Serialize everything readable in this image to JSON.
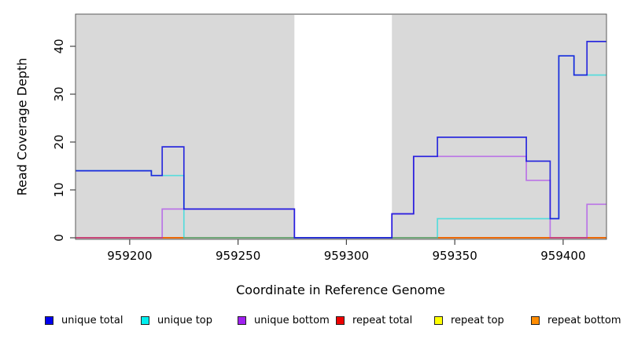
{
  "figure": {
    "kind": "read-coverage-step-plot",
    "background_color": "#ffffff",
    "plot_background_color": "#d9d9d9",
    "frame_color": "#5a5a5a"
  },
  "axes": {
    "xlabel": "Coordinate in Reference Genome",
    "ylabel": "Read Coverage Depth"
  },
  "chart_data": {
    "type": "line",
    "subtype": "step",
    "title": "",
    "xlabel": "Coordinate in Reference Genome",
    "ylabel": "Read Coverage Depth",
    "xlim": [
      959175,
      959420
    ],
    "ylim": [
      0,
      46
    ],
    "x_ticks": [
      959200,
      959250,
      959300,
      959350,
      959400
    ],
    "y_ticks": [
      0,
      10,
      20,
      30,
      40
    ],
    "grid": false,
    "legend_position": "bottom",
    "plot_fill": "#d9d9d9",
    "gap_region": {
      "start": 959276,
      "end": 959321,
      "fill": "#ffffff",
      "note": "white uncovered band"
    },
    "series": [
      {
        "name": "repeat bottom",
        "color": "#ff8c00",
        "opacity": 0.95,
        "points": [
          [
            959175,
            0
          ]
        ]
      },
      {
        "name": "repeat top",
        "color": "#ffff00",
        "opacity": 0.75,
        "points": [
          [
            959175,
            0
          ]
        ]
      },
      {
        "name": "repeat total",
        "color": "#dd0000",
        "opacity": 0.6,
        "points": [
          [
            959175,
            0
          ]
        ]
      },
      {
        "name": "unique bottom",
        "color": "#a020f0",
        "opacity": 0.55,
        "points": [
          [
            959175,
            0
          ],
          [
            959215,
            6
          ],
          [
            959276,
            0
          ],
          [
            959321,
            5
          ],
          [
            959331,
            17
          ],
          [
            959383,
            12
          ],
          [
            959394,
            0
          ],
          [
            959411,
            7
          ]
        ]
      },
      {
        "name": "unique top",
        "color": "#00dddd",
        "opacity": 0.6,
        "points": [
          [
            959175,
            14
          ],
          [
            959210,
            13
          ],
          [
            959225,
            0
          ],
          [
            959342,
            4
          ],
          [
            959398,
            38
          ],
          [
            959405,
            34
          ]
        ]
      },
      {
        "name": "unique total",
        "color": "#1212dd",
        "opacity": 0.88,
        "points": [
          [
            959175,
            14
          ],
          [
            959210,
            13
          ],
          [
            959215,
            19
          ],
          [
            959225,
            6
          ],
          [
            959276,
            0
          ],
          [
            959321,
            5
          ],
          [
            959331,
            17
          ],
          [
            959342,
            21
          ],
          [
            959383,
            16
          ],
          [
            959394,
            4
          ],
          [
            959398,
            38
          ],
          [
            959405,
            34
          ],
          [
            959411,
            41
          ]
        ]
      }
    ],
    "legend": [
      {
        "label": "unique total",
        "color": "#0000ee"
      },
      {
        "label": "unique top",
        "color": "#00eeee"
      },
      {
        "label": "unique bottom",
        "color": "#a020f0"
      },
      {
        "label": "repeat total",
        "color": "#ee0000"
      },
      {
        "label": "repeat top",
        "color": "#ffff00"
      },
      {
        "label": "repeat bottom",
        "color": "#ff8c00"
      }
    ]
  }
}
